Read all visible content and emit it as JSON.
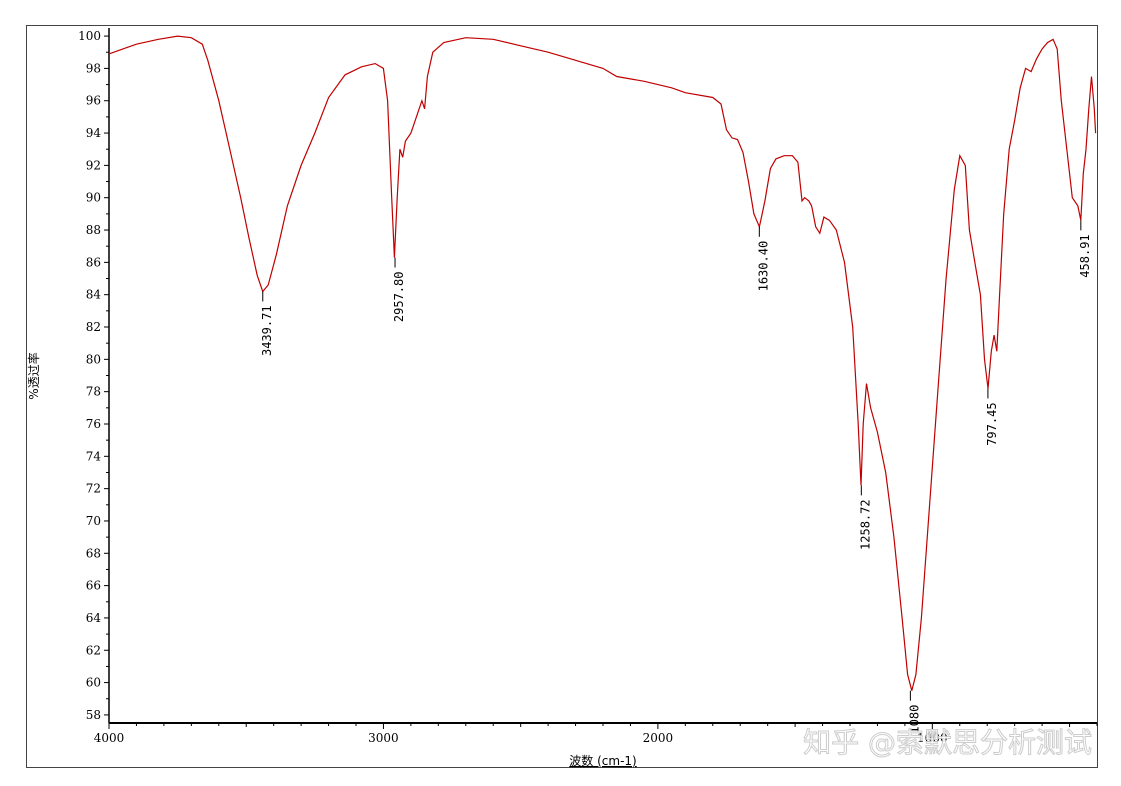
{
  "chart_data": {
    "type": "line",
    "title": "",
    "xlabel": "波数 (cm-1)",
    "ylabel": "%透过率",
    "xlim": [
      4000,
      400
    ],
    "ylim": [
      57.5,
      100.5
    ],
    "x_ticks": [
      4000,
      3000,
      2000,
      1000
    ],
    "y_ticks": [
      58,
      60,
      62,
      64,
      66,
      68,
      70,
      72,
      74,
      76,
      78,
      80,
      82,
      84,
      86,
      88,
      90,
      92,
      94,
      96,
      98,
      100
    ],
    "grid": false,
    "legend": "none",
    "series": [
      {
        "color": "#c00000",
        "points": [
          [
            4000,
            98.9
          ],
          [
            3900,
            99.5
          ],
          [
            3820,
            99.8
          ],
          [
            3750,
            100.0
          ],
          [
            3700,
            99.9
          ],
          [
            3660,
            99.5
          ],
          [
            3640,
            98.5
          ],
          [
            3600,
            96.0
          ],
          [
            3560,
            93.0
          ],
          [
            3520,
            90.0
          ],
          [
            3490,
            87.5
          ],
          [
            3460,
            85.2
          ],
          [
            3440,
            84.2
          ],
          [
            3420,
            84.6
          ],
          [
            3390,
            86.5
          ],
          [
            3350,
            89.5
          ],
          [
            3300,
            92.0
          ],
          [
            3250,
            94.0
          ],
          [
            3200,
            96.2
          ],
          [
            3140,
            97.6
          ],
          [
            3080,
            98.1
          ],
          [
            3030,
            98.3
          ],
          [
            3000,
            98.0
          ],
          [
            2985,
            96.0
          ],
          [
            2970,
            90.0
          ],
          [
            2960,
            86.3
          ],
          [
            2950,
            90.0
          ],
          [
            2940,
            93.0
          ],
          [
            2930,
            92.5
          ],
          [
            2920,
            93.5
          ],
          [
            2900,
            94.0
          ],
          [
            2880,
            95.0
          ],
          [
            2860,
            96.0
          ],
          [
            2850,
            95.5
          ],
          [
            2840,
            97.5
          ],
          [
            2820,
            99.0
          ],
          [
            2780,
            99.6
          ],
          [
            2700,
            99.9
          ],
          [
            2600,
            99.8
          ],
          [
            2500,
            99.4
          ],
          [
            2400,
            99.0
          ],
          [
            2300,
            98.5
          ],
          [
            2200,
            98.0
          ],
          [
            2150,
            97.5
          ],
          [
            2050,
            97.2
          ],
          [
            1950,
            96.8
          ],
          [
            1900,
            96.5
          ],
          [
            1800,
            96.2
          ],
          [
            1770,
            95.8
          ],
          [
            1750,
            94.2
          ],
          [
            1730,
            93.7
          ],
          [
            1710,
            93.6
          ],
          [
            1690,
            92.8
          ],
          [
            1670,
            91.0
          ],
          [
            1650,
            89.0
          ],
          [
            1630,
            88.2
          ],
          [
            1610,
            89.8
          ],
          [
            1590,
            91.8
          ],
          [
            1570,
            92.4
          ],
          [
            1540,
            92.6
          ],
          [
            1510,
            92.6
          ],
          [
            1490,
            92.2
          ],
          [
            1475,
            89.8
          ],
          [
            1465,
            90.0
          ],
          [
            1450,
            89.8
          ],
          [
            1440,
            89.5
          ],
          [
            1425,
            88.2
          ],
          [
            1410,
            87.8
          ],
          [
            1395,
            88.8
          ],
          [
            1375,
            88.6
          ],
          [
            1350,
            88.0
          ],
          [
            1320,
            86.0
          ],
          [
            1290,
            82.0
          ],
          [
            1270,
            76.0
          ],
          [
            1260,
            72.2
          ],
          [
            1252,
            76.0
          ],
          [
            1240,
            78.5
          ],
          [
            1225,
            77.0
          ],
          [
            1200,
            75.5
          ],
          [
            1170,
            73.0
          ],
          [
            1140,
            69.0
          ],
          [
            1110,
            64.0
          ],
          [
            1090,
            60.5
          ],
          [
            1075,
            59.5
          ],
          [
            1060,
            60.5
          ],
          [
            1040,
            64.0
          ],
          [
            1010,
            71.0
          ],
          [
            980,
            78.0
          ],
          [
            950,
            85.0
          ],
          [
            920,
            90.5
          ],
          [
            900,
            92.6
          ],
          [
            880,
            92.0
          ],
          [
            865,
            88.0
          ],
          [
            850,
            86.5
          ],
          [
            840,
            85.5
          ],
          [
            825,
            84.0
          ],
          [
            810,
            80.0
          ],
          [
            797,
            78.2
          ],
          [
            785,
            80.5
          ],
          [
            775,
            81.5
          ],
          [
            765,
            80.5
          ],
          [
            755,
            84.0
          ],
          [
            740,
            89.0
          ],
          [
            720,
            93.0
          ],
          [
            700,
            94.8
          ],
          [
            680,
            96.8
          ],
          [
            660,
            98.0
          ],
          [
            640,
            97.8
          ],
          [
            620,
            98.6
          ],
          [
            600,
            99.2
          ],
          [
            580,
            99.6
          ],
          [
            560,
            99.8
          ],
          [
            545,
            99.2
          ],
          [
            530,
            96.0
          ],
          [
            510,
            93.0
          ],
          [
            490,
            90.0
          ],
          [
            470,
            89.5
          ],
          [
            459,
            88.6
          ],
          [
            450,
            91.5
          ],
          [
            440,
            93.0
          ],
          [
            430,
            95.5
          ],
          [
            420,
            97.5
          ],
          [
            410,
            95.5
          ],
          [
            405,
            94.0
          ]
        ]
      }
    ],
    "peak_labels": [
      {
        "wavenumber": 3439.71,
        "text": "3439.71",
        "y": 84.2
      },
      {
        "wavenumber": 2957.8,
        "text": "2957.80",
        "y": 86.3
      },
      {
        "wavenumber": 1630.4,
        "text": "1630.40",
        "y": 88.2
      },
      {
        "wavenumber": 1258.72,
        "text": "1258.72",
        "y": 72.2
      },
      {
        "wavenumber": 1080,
        "text": "1080",
        "y": 59.5
      },
      {
        "wavenumber": 797.45,
        "text": "797.45",
        "y": 78.2
      },
      {
        "wavenumber": 458.91,
        "text": "458.91",
        "y": 88.6
      }
    ]
  },
  "watermark": "知乎 @索默思分析测试"
}
